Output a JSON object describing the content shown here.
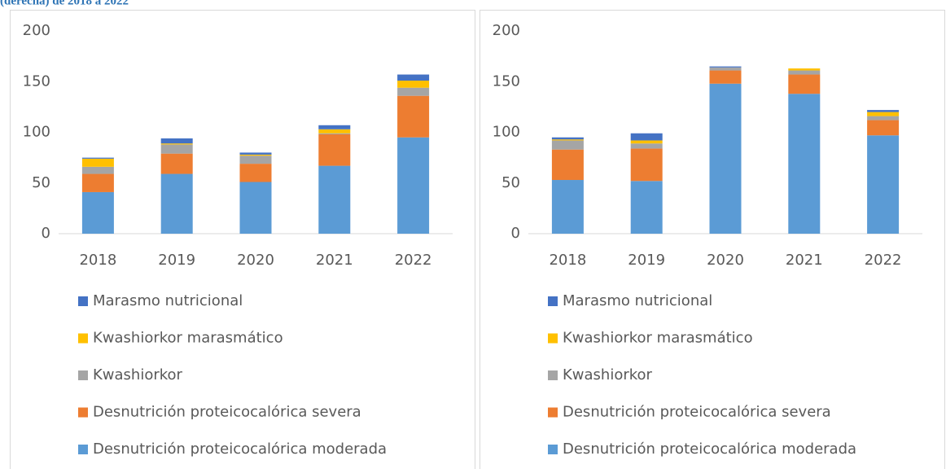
{
  "caption": "(derecha) de 2018 a 2022",
  "chart_data": [
    {
      "type": "bar",
      "stacked": true,
      "categories": [
        "2018",
        "2019",
        "2020",
        "2021",
        "2022"
      ],
      "ylim": [
        0,
        200
      ],
      "yticks": [
        0,
        50,
        100,
        150,
        200
      ],
      "series": [
        {
          "name": "Desnutrición proteicocalórica moderada",
          "color": "#5b9bd5",
          "values": [
            41,
            59,
            51,
            67,
            95
          ]
        },
        {
          "name": "Desnutrición proteicocalórica severa",
          "color": "#ed7d31",
          "values": [
            18,
            20,
            18,
            31,
            41
          ]
        },
        {
          "name": "Kwashiorkor",
          "color": "#a5a5a5",
          "values": [
            7,
            9,
            8,
            1,
            8
          ]
        },
        {
          "name": "Kwashiorkor marasmático",
          "color": "#ffc000",
          "values": [
            8,
            1,
            1,
            4,
            7
          ]
        },
        {
          "name": "Marasmo nutricional",
          "color": "#4472c4",
          "values": [
            1,
            5,
            2,
            4,
            6
          ]
        }
      ]
    },
    {
      "type": "bar",
      "stacked": true,
      "categories": [
        "2018",
        "2019",
        "2020",
        "2021",
        "2022"
      ],
      "ylim": [
        0,
        200
      ],
      "yticks": [
        0,
        50,
        100,
        150,
        200
      ],
      "series": [
        {
          "name": "Desnutrición proteicocalórica moderada",
          "color": "#5b9bd5",
          "values": [
            53,
            52,
            148,
            138,
            97
          ]
        },
        {
          "name": "Desnutrición proteicocalórica severa",
          "color": "#ed7d31",
          "values": [
            30,
            32,
            13,
            19,
            15
          ]
        },
        {
          "name": "Kwashiorkor",
          "color": "#a5a5a5",
          "values": [
            9,
            5,
            3,
            4,
            4
          ]
        },
        {
          "name": "Kwashiorkor marasmático",
          "color": "#ffc000",
          "values": [
            1,
            3,
            0,
            2,
            4
          ]
        },
        {
          "name": "Marasmo nutricional",
          "color": "#4472c4",
          "values": [
            2,
            7,
            1,
            0,
            2
          ]
        }
      ]
    }
  ]
}
